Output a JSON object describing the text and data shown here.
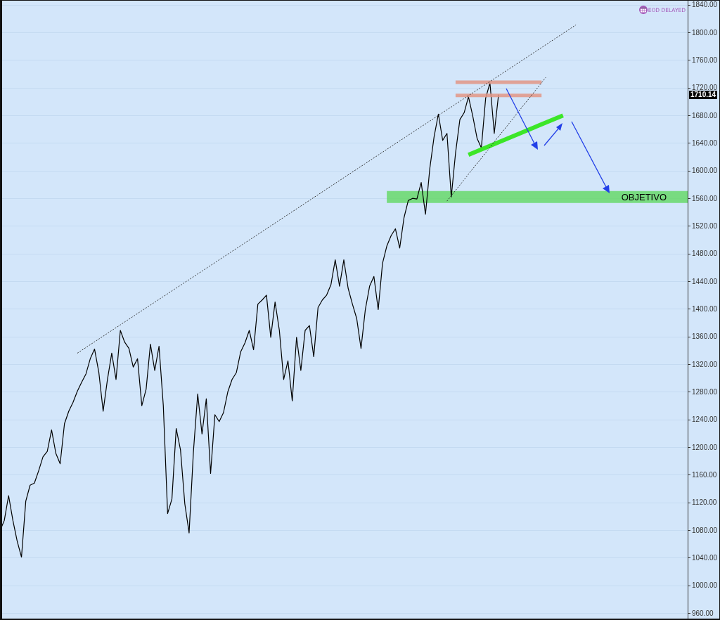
{
  "chart_data": {
    "type": "line",
    "categories": [
      null,
      null,
      null,
      null,
      null,
      null,
      null,
      null,
      null,
      null,
      null,
      null,
      null,
      null,
      null,
      null,
      null,
      null,
      null,
      null,
      null,
      null,
      null,
      null,
      null,
      null,
      null,
      null,
      null,
      null,
      null,
      null,
      null,
      null,
      null,
      null,
      null,
      null,
      null,
      null,
      null,
      null,
      null,
      null,
      null,
      null,
      null,
      null,
      null,
      null,
      null,
      null,
      null,
      null,
      null,
      null,
      null,
      null,
      null,
      null,
      null,
      null,
      null,
      null,
      null,
      null,
      null,
      null,
      null,
      null,
      null,
      null,
      null,
      null,
      null,
      null,
      null,
      null,
      null,
      null,
      null,
      null,
      null,
      null,
      null,
      null,
      null,
      null,
      null,
      null,
      null,
      null,
      null,
      null,
      null,
      null,
      null,
      null,
      null,
      null,
      null,
      null,
      null,
      null,
      null,
      null,
      null,
      null,
      null,
      null,
      null,
      null,
      null,
      null,
      null,
      null,
      null,
      null,
      null,
      null,
      null,
      null,
      null,
      null,
      null,
      null,
      null,
      null,
      null,
      null,
      null,
      null,
      null,
      null,
      null,
      null,
      null,
      null,
      null,
      null,
      null,
      null,
      null,
      null,
      null,
      null,
      null,
      null,
      null,
      null,
      null,
      null,
      null,
      null,
      null,
      null,
      null,
      null,
      null,
      null,
      null
    ],
    "series": [
      {
        "color": "#000000",
        "values": [
          1079,
          1094,
          1130,
          1094,
          1064,
          1041,
          1122,
          1145,
          1148,
          1166,
          1186,
          1194,
          1225,
          1191,
          1176,
          1234,
          1252,
          1265,
          1281,
          1294,
          1306,
          1328,
          1342,
          1308,
          1252,
          1298,
          1336,
          1298,
          1369,
          1352,
          1343,
          1316,
          1328,
          1260,
          1284,
          1349,
          1311,
          1346,
          1260,
          1104,
          1125,
          1227,
          1196,
          1118,
          1076,
          1193,
          1277,
          1219,
          1270,
          1162,
          1247,
          1237,
          1250,
          1280,
          1298,
          1308,
          1338,
          1351,
          1369,
          1341,
          1407,
          1413,
          1420,
          1359,
          1410,
          1369,
          1298,
          1325,
          1267,
          1359,
          1311,
          1369,
          1376,
          1331,
          1402,
          1413,
          1420,
          1435,
          1471,
          1433,
          1471,
          1430,
          1407,
          1386,
          1343,
          1399,
          1433,
          1447,
          1399,
          1466,
          1491,
          1506,
          1516,
          1488,
          1532,
          1557,
          1560,
          1559,
          1583,
          1537,
          1603,
          1649,
          1682,
          1644,
          1654,
          1562,
          1626,
          1674,
          1684,
          1707,
          1679,
          1647,
          1633,
          1705,
          1727,
          1654,
          1710.14,
          null,
          null,
          null,
          null,
          null,
          null,
          null,
          null,
          null,
          null,
          null,
          null,
          null,
          null,
          null,
          null,
          null,
          null,
          null,
          null,
          null,
          null,
          null,
          null,
          null,
          null,
          null,
          null,
          null,
          null,
          null,
          null,
          null,
          null,
          null,
          null,
          null,
          null,
          null,
          null,
          null,
          null,
          null,
          null
        ]
      },
      {
        "color": "#222222",
        "line_style": "dotted",
        "values": [
          null,
          null,
          null,
          null,
          null,
          null,
          null,
          null,
          null,
          null,
          null,
          null,
          null,
          null,
          null,
          null,
          null,
          null,
          1336,
          null,
          null,
          null,
          null,
          null,
          null,
          null,
          null,
          null,
          null,
          null,
          null,
          null,
          null,
          null,
          null,
          null,
          null,
          null,
          null,
          null,
          null,
          null,
          null,
          null,
          null,
          null,
          null,
          null,
          null,
          null,
          null,
          null,
          null,
          null,
          null,
          null,
          null,
          null,
          null,
          null,
          null,
          null,
          null,
          null,
          null,
          null,
          null,
          null,
          null,
          null,
          null,
          null,
          null,
          null,
          null,
          null,
          null,
          null,
          null,
          null,
          null,
          null,
          null,
          null,
          null,
          null,
          null,
          null,
          null,
          null,
          null,
          null,
          null,
          null,
          null,
          null,
          null,
          null,
          null,
          null,
          null,
          null,
          null,
          null,
          null,
          null,
          null,
          null,
          null,
          null,
          null,
          null,
          null,
          null,
          null,
          null,
          null,
          null,
          null,
          null,
          null,
          null,
          null,
          null,
          null,
          null,
          null,
          null,
          null,
          null,
          null,
          null,
          null,
          null,
          1811,
          null,
          null,
          null,
          null,
          null,
          null,
          null,
          null,
          null,
          null,
          null,
          null,
          null,
          null,
          null,
          null,
          null,
          null,
          null,
          null,
          null,
          null,
          null,
          null,
          null,
          null
        ]
      },
      {
        "color": "#222222",
        "line_style": "dotted",
        "values": [
          null,
          null,
          null,
          null,
          null,
          null,
          null,
          null,
          null,
          null,
          null,
          null,
          null,
          null,
          null,
          null,
          null,
          null,
          null,
          null,
          null,
          null,
          null,
          null,
          null,
          null,
          null,
          null,
          null,
          null,
          null,
          null,
          null,
          null,
          null,
          null,
          null,
          null,
          null,
          null,
          null,
          null,
          null,
          null,
          null,
          null,
          null,
          null,
          null,
          null,
          null,
          null,
          null,
          null,
          null,
          null,
          null,
          null,
          null,
          null,
          null,
          null,
          null,
          null,
          null,
          null,
          null,
          null,
          null,
          null,
          null,
          null,
          null,
          null,
          null,
          null,
          null,
          null,
          null,
          null,
          null,
          null,
          null,
          null,
          null,
          null,
          null,
          null,
          null,
          null,
          null,
          null,
          null,
          null,
          null,
          null,
          null,
          null,
          null,
          null,
          null,
          null,
          null,
          null,
          1556,
          null,
          null,
          null,
          null,
          null,
          null,
          null,
          null,
          null,
          null,
          null,
          null,
          null,
          null,
          null,
          null,
          null,
          null,
          null,
          null,
          null,
          null,
          1735,
          null,
          null,
          null,
          null,
          null,
          null,
          null,
          null,
          null,
          null,
          null,
          null,
          null,
          null,
          null,
          null,
          null,
          null,
          null,
          null,
          null,
          null,
          null,
          null,
          null,
          null,
          null,
          null,
          null,
          null,
          null,
          null,
          null
        ]
      },
      {
        "color": "#e29585",
        "values": [
          null,
          null,
          null,
          null,
          null,
          null,
          null,
          null,
          null,
          null,
          null,
          null,
          null,
          null,
          null,
          null,
          null,
          null,
          null,
          null,
          null,
          null,
          null,
          null,
          null,
          null,
          null,
          null,
          null,
          null,
          null,
          null,
          null,
          null,
          null,
          null,
          null,
          null,
          null,
          null,
          null,
          null,
          null,
          null,
          null,
          null,
          null,
          null,
          null,
          null,
          null,
          null,
          null,
          null,
          null,
          null,
          null,
          null,
          null,
          null,
          null,
          null,
          null,
          null,
          null,
          null,
          null,
          null,
          null,
          null,
          null,
          null,
          null,
          null,
          null,
          null,
          null,
          null,
          null,
          null,
          null,
          null,
          null,
          null,
          null,
          null,
          null,
          null,
          null,
          null,
          null,
          null,
          null,
          null,
          null,
          null,
          null,
          null,
          null,
          null,
          null,
          null,
          null,
          null,
          null,
          null,
          1728,
          null,
          null,
          null,
          null,
          null,
          null,
          null,
          null,
          null,
          null,
          null,
          null,
          null,
          null,
          null,
          null,
          null,
          null,
          null,
          1728,
          null,
          null,
          null,
          null,
          null,
          null,
          null,
          null,
          null,
          null,
          null,
          null,
          null,
          null,
          null,
          null,
          null,
          null,
          null,
          null,
          null,
          null,
          null,
          null,
          null,
          null,
          null,
          null,
          null,
          null,
          null,
          null,
          null,
          null
        ]
      },
      {
        "color": "#e29585",
        "values": [
          null,
          null,
          null,
          null,
          null,
          null,
          null,
          null,
          null,
          null,
          null,
          null,
          null,
          null,
          null,
          null,
          null,
          null,
          null,
          null,
          null,
          null,
          null,
          null,
          null,
          null,
          null,
          null,
          null,
          null,
          null,
          null,
          null,
          null,
          null,
          null,
          null,
          null,
          null,
          null,
          null,
          null,
          null,
          null,
          null,
          null,
          null,
          null,
          null,
          null,
          null,
          null,
          null,
          null,
          null,
          null,
          null,
          null,
          null,
          null,
          null,
          null,
          null,
          null,
          null,
          null,
          null,
          null,
          null,
          null,
          null,
          null,
          null,
          null,
          null,
          null,
          null,
          null,
          null,
          null,
          null,
          null,
          null,
          null,
          null,
          null,
          null,
          null,
          null,
          null,
          null,
          null,
          null,
          null,
          null,
          null,
          null,
          null,
          null,
          null,
          null,
          null,
          null,
          null,
          null,
          null,
          1709,
          null,
          null,
          null,
          null,
          null,
          null,
          null,
          null,
          null,
          null,
          null,
          null,
          null,
          null,
          null,
          null,
          null,
          null,
          null,
          1709,
          null,
          null,
          null,
          null,
          null,
          null,
          null,
          null,
          null,
          null,
          null,
          null,
          null,
          null,
          null,
          null,
          null,
          null,
          null,
          null,
          null,
          null,
          null,
          null,
          null,
          null,
          null,
          null,
          null,
          null,
          null,
          null,
          null,
          null
        ]
      },
      {
        "color": "#3ce628",
        "values": [
          null,
          null,
          null,
          null,
          null,
          null,
          null,
          null,
          null,
          null,
          null,
          null,
          null,
          null,
          null,
          null,
          null,
          null,
          null,
          null,
          null,
          null,
          null,
          null,
          null,
          null,
          null,
          null,
          null,
          null,
          null,
          null,
          null,
          null,
          null,
          null,
          null,
          null,
          null,
          null,
          null,
          null,
          null,
          null,
          null,
          null,
          null,
          null,
          null,
          null,
          null,
          null,
          null,
          null,
          null,
          null,
          null,
          null,
          null,
          null,
          null,
          null,
          null,
          null,
          null,
          null,
          null,
          null,
          null,
          null,
          null,
          null,
          null,
          null,
          null,
          null,
          null,
          null,
          null,
          null,
          null,
          null,
          null,
          null,
          null,
          null,
          null,
          null,
          null,
          null,
          null,
          null,
          null,
          null,
          null,
          null,
          null,
          null,
          null,
          null,
          null,
          null,
          null,
          null,
          null,
          null,
          null,
          null,
          null,
          1623,
          null,
          null,
          null,
          null,
          null,
          null,
          null,
          null,
          null,
          null,
          null,
          null,
          null,
          null,
          null,
          null,
          null,
          null,
          null,
          null,
          null,
          1680,
          null,
          null,
          null,
          null,
          null,
          null,
          null,
          null,
          null,
          null,
          null,
          null,
          null,
          null,
          null,
          null,
          null,
          null,
          null,
          null,
          null,
          null,
          null,
          null,
          null,
          null,
          null,
          null,
          null
        ]
      },
      {
        "name": "OBJETIVO",
        "color": "#62d862",
        "values": [
          null,
          null,
          null,
          null,
          null,
          null,
          null,
          null,
          null,
          null,
          null,
          null,
          null,
          null,
          null,
          null,
          null,
          null,
          null,
          null,
          null,
          null,
          null,
          null,
          null,
          null,
          null,
          null,
          null,
          null,
          null,
          null,
          null,
          null,
          null,
          null,
          null,
          null,
          null,
          null,
          null,
          null,
          null,
          null,
          null,
          null,
          null,
          null,
          null,
          null,
          null,
          null,
          null,
          null,
          null,
          null,
          null,
          null,
          null,
          null,
          null,
          null,
          null,
          null,
          null,
          null,
          null,
          null,
          null,
          null,
          null,
          null,
          null,
          null,
          null,
          null,
          null,
          null,
          null,
          null,
          null,
          null,
          null,
          null,
          null,
          null,
          null,
          null,
          null,
          null,
          1562,
          null,
          null,
          null,
          null,
          null,
          null,
          null,
          null,
          null,
          null,
          null,
          null,
          null,
          null,
          null,
          null,
          null,
          null,
          null,
          null,
          null,
          null,
          null,
          null,
          null,
          null,
          null,
          null,
          null,
          null,
          null,
          null,
          null,
          null,
          null,
          null,
          null,
          null,
          null,
          null,
          null,
          null,
          null,
          null,
          null,
          null,
          null,
          null,
          null,
          null,
          null,
          null,
          null,
          null,
          null,
          null,
          null,
          null,
          null,
          null,
          null,
          null,
          null,
          null,
          null,
          null,
          null,
          null,
          null,
          1562
        ]
      }
    ],
    "ylim": [
      952,
      1846
    ],
    "yticks": [
      {
        "value": 960,
        "label": "960.00"
      },
      {
        "value": 1000,
        "label": "1000.00"
      },
      {
        "value": 1040,
        "label": "1040.00"
      },
      {
        "value": 1080,
        "label": "1080.00"
      },
      {
        "value": 1120,
        "label": "1120.00"
      },
      {
        "value": 1160,
        "label": "1160.00"
      },
      {
        "value": 1200,
        "label": "1200.00"
      },
      {
        "value": 1240,
        "label": "1240.00"
      },
      {
        "value": 1280,
        "label": "1280.00"
      },
      {
        "value": 1320,
        "label": "1320.00"
      },
      {
        "value": 1360,
        "label": "1360.00"
      },
      {
        "value": 1400,
        "label": "1400.00"
      },
      {
        "value": 1440,
        "label": "1440.00"
      },
      {
        "value": 1480,
        "label": "1480.00"
      },
      {
        "value": 1520,
        "label": "1520.00"
      },
      {
        "value": 1560,
        "label": "1560.00"
      },
      {
        "value": 1600,
        "label": "1600.00"
      },
      {
        "value": 1640,
        "label": "1640.00"
      },
      {
        "value": 1680,
        "label": "1680.00"
      },
      {
        "value": 1720,
        "label": "1720.00"
      },
      {
        "value": 1760,
        "label": "1760.00"
      },
      {
        "value": 1800,
        "label": "1800.00"
      },
      {
        "value": 1840,
        "label": "1840.00"
      }
    ],
    "annotations": [
      "EOD DELAYED",
      "1710.14"
    ],
    "grid": "y",
    "legend": false,
    "marker": "none",
    "tick_labels": "y"
  }
}
